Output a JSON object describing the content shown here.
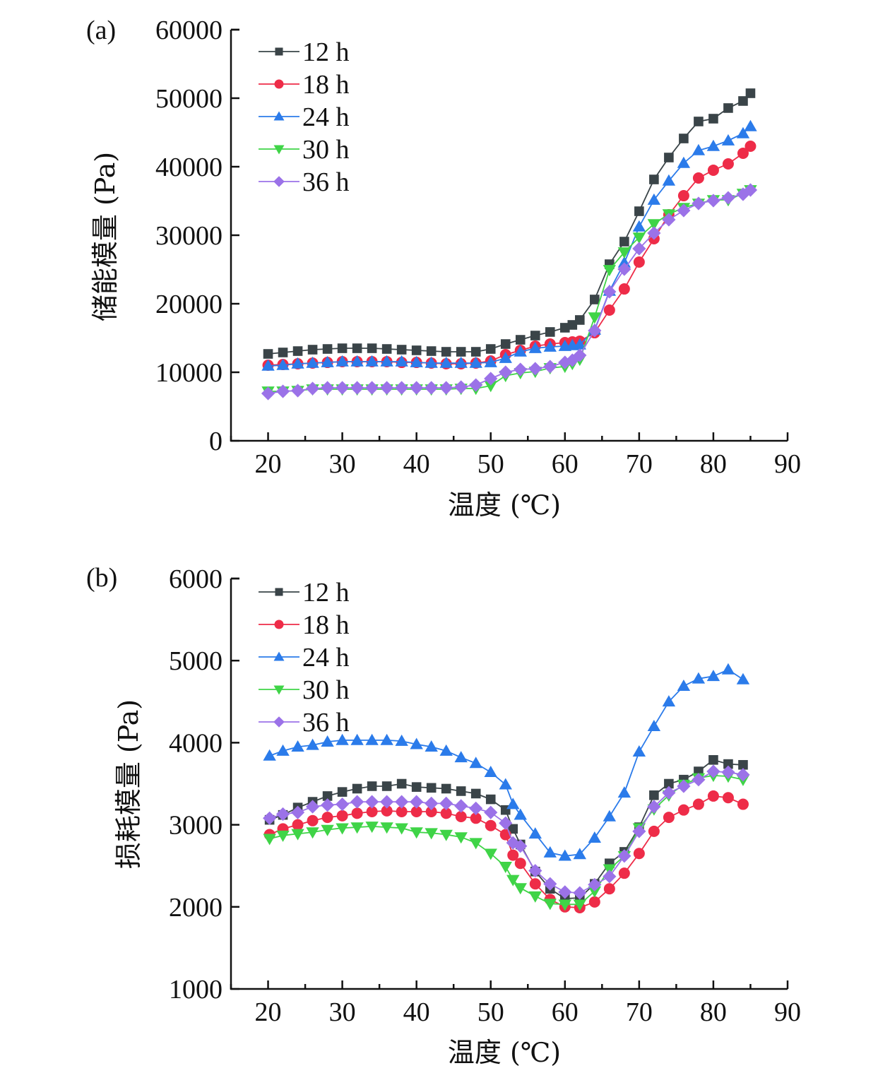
{
  "chart_data": [
    {
      "type": "line",
      "panel_label": "(a)",
      "title": "",
      "xlabel": "温度 (℃)",
      "ylabel": "储能模量 (Pa)",
      "xlim": [
        15,
        90
      ],
      "ylim": [
        0,
        60000
      ],
      "xticks": [
        20,
        30,
        40,
        50,
        60,
        70,
        80,
        90
      ],
      "xtick_labels": [
        "20",
        "30",
        "40",
        "50",
        "60",
        "70",
        "80",
        "90"
      ],
      "yticks": [
        0,
        10000,
        20000,
        30000,
        40000,
        50000,
        60000
      ],
      "ytick_labels": [
        "0",
        "10000",
        "20000",
        "30000",
        "40000",
        "50000",
        "60000"
      ],
      "grid": false,
      "legend_position": "top-left",
      "x": [
        20,
        22,
        24,
        26,
        28,
        30,
        32,
        34,
        36,
        38,
        40,
        42,
        44,
        46,
        48,
        50,
        52,
        54,
        56,
        58,
        60,
        61,
        62,
        64,
        66,
        68,
        70,
        72,
        74,
        76,
        78,
        80,
        82,
        84,
        85
      ],
      "series": [
        {
          "name": "12 h",
          "color": "#3a4448",
          "marker": "square",
          "values": [
            12680,
            12890,
            13090,
            13300,
            13400,
            13500,
            13500,
            13500,
            13400,
            13300,
            13200,
            13090,
            12990,
            12990,
            12990,
            13400,
            14120,
            14740,
            15360,
            15880,
            16500,
            16910,
            17630,
            20620,
            25770,
            29070,
            33500,
            38140,
            41340,
            44120,
            46600,
            47010,
            48560,
            49590,
            50720
          ]
        },
        {
          "name": "18 h",
          "color": "#ee2c48",
          "marker": "circle",
          "values": [
            11030,
            11130,
            11240,
            11340,
            11440,
            11550,
            11550,
            11550,
            11550,
            11440,
            11440,
            11340,
            11240,
            11240,
            11340,
            11650,
            12580,
            13200,
            13810,
            14120,
            14330,
            14430,
            14540,
            15770,
            19070,
            22160,
            26080,
            29490,
            32990,
            35770,
            38350,
            39490,
            40410,
            41960,
            42990
          ]
        },
        {
          "name": "24 h",
          "color": "#2b7bea",
          "marker": "triangle-up",
          "values": [
            10930,
            11030,
            11240,
            11340,
            11440,
            11550,
            11550,
            11550,
            11550,
            11550,
            11440,
            11340,
            11340,
            11340,
            11340,
            11440,
            12060,
            12990,
            13500,
            13710,
            13810,
            13920,
            14020,
            16190,
            21860,
            25980,
            31240,
            35150,
            37940,
            40520,
            42370,
            42990,
            43810,
            44850,
            45880
          ]
        },
        {
          "name": "30 h",
          "color": "#3fd447",
          "marker": "triangle-down",
          "values": [
            7220,
            7220,
            7320,
            7530,
            7530,
            7530,
            7530,
            7530,
            7530,
            7530,
            7530,
            7530,
            7530,
            7630,
            7630,
            8040,
            9490,
            9900,
            10100,
            10620,
            10830,
            11240,
            11860,
            18040,
            24950,
            27530,
            29690,
            31650,
            33090,
            34020,
            34640,
            35150,
            35150,
            36080,
            36600
          ]
        },
        {
          "name": "36 h",
          "color": "#9b72e8",
          "marker": "diamond",
          "values": [
            6910,
            7220,
            7320,
            7630,
            7730,
            7730,
            7730,
            7730,
            7730,
            7730,
            7730,
            7730,
            7730,
            7840,
            8140,
            9070,
            10000,
            10410,
            10520,
            10830,
            11440,
            11750,
            12470,
            16080,
            21750,
            25050,
            28040,
            30310,
            32270,
            33610,
            34640,
            35050,
            35460,
            35980,
            36600
          ]
        }
      ]
    },
    {
      "type": "line",
      "panel_label": "(b)",
      "title": "",
      "xlabel": "温度 (℃)",
      "ylabel": "损耗模量 (Pa)",
      "xlim": [
        15,
        90
      ],
      "ylim": [
        1000,
        6000
      ],
      "xticks": [
        20,
        30,
        40,
        50,
        60,
        70,
        80,
        90
      ],
      "xtick_labels": [
        "20",
        "30",
        "40",
        "50",
        "60",
        "70",
        "80",
        "90"
      ],
      "yticks": [
        1000,
        2000,
        3000,
        4000,
        5000,
        6000
      ],
      "ytick_labels": [
        "1000",
        "2000",
        "3000",
        "4000",
        "5000",
        "6000"
      ],
      "grid": false,
      "legend_position": "top-left",
      "x": [
        20.2,
        22,
        24,
        26,
        28,
        30,
        32,
        34,
        36,
        38,
        40,
        42,
        44,
        46,
        48,
        50,
        52,
        53,
        54,
        56,
        58,
        60,
        62,
        64,
        66,
        68,
        70,
        72,
        74,
        76,
        78,
        80,
        82,
        84
      ],
      "series": [
        {
          "name": "12 h",
          "color": "#3a4448",
          "marker": "square",
          "values": [
            3060,
            3120,
            3210,
            3280,
            3350,
            3400,
            3440,
            3470,
            3470,
            3500,
            3460,
            3450,
            3440,
            3410,
            3380,
            3310,
            3180,
            2950,
            2760,
            2430,
            2220,
            2100,
            2110,
            2280,
            2530,
            2670,
            2970,
            3360,
            3500,
            3550,
            3650,
            3790,
            3740,
            3730
          ]
        },
        {
          "name": "18 h",
          "color": "#ee2c48",
          "marker": "circle",
          "values": [
            2880,
            2950,
            3000,
            3050,
            3090,
            3110,
            3140,
            3160,
            3170,
            3160,
            3160,
            3160,
            3140,
            3100,
            3080,
            2990,
            2880,
            2630,
            2530,
            2280,
            2090,
            2000,
            1990,
            2060,
            2220,
            2410,
            2650,
            2920,
            3090,
            3180,
            3250,
            3350,
            3330,
            3250
          ]
        },
        {
          "name": "24 h",
          "color": "#2b7bea",
          "marker": "triangle-up",
          "values": [
            3840,
            3900,
            3950,
            3970,
            4010,
            4030,
            4030,
            4030,
            4030,
            4020,
            3980,
            3950,
            3900,
            3820,
            3750,
            3640,
            3490,
            3250,
            3120,
            2890,
            2660,
            2620,
            2640,
            2840,
            3100,
            3390,
            3890,
            4200,
            4500,
            4690,
            4780,
            4810,
            4890,
            4770
          ]
        },
        {
          "name": "30 h",
          "color": "#3fd447",
          "marker": "triangle-down",
          "values": [
            2830,
            2870,
            2890,
            2910,
            2940,
            2960,
            2970,
            2980,
            2970,
            2960,
            2910,
            2900,
            2880,
            2850,
            2780,
            2650,
            2490,
            2330,
            2230,
            2130,
            2040,
            2030,
            2030,
            2190,
            2460,
            2620,
            2960,
            3190,
            3360,
            3490,
            3570,
            3600,
            3590,
            3550
          ]
        },
        {
          "name": "36 h",
          "color": "#9b72e8",
          "marker": "diamond",
          "values": [
            3080,
            3130,
            3150,
            3220,
            3240,
            3250,
            3280,
            3280,
            3280,
            3280,
            3280,
            3260,
            3260,
            3230,
            3200,
            3150,
            3020,
            2780,
            2740,
            2440,
            2280,
            2180,
            2170,
            2270,
            2370,
            2620,
            2920,
            3220,
            3390,
            3470,
            3550,
            3650,
            3640,
            3610
          ]
        }
      ]
    }
  ]
}
